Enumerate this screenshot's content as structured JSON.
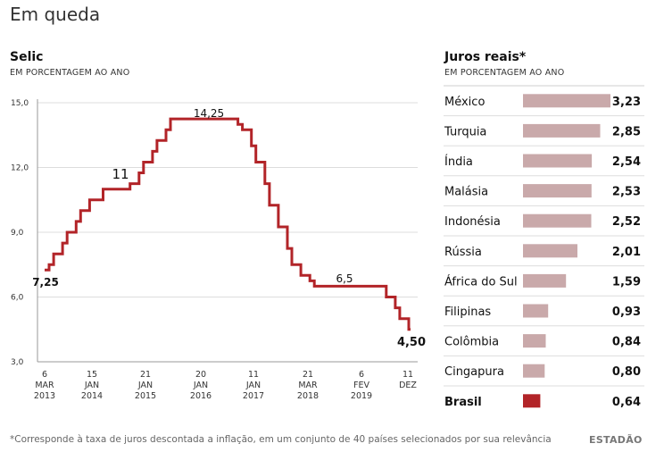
{
  "page_title": "Em queda",
  "footnote": "*Corresponde à taxa de juros descontada a inflação, em um conjunto de 40 países selecionados por sua relevância",
  "logo": "ESTADÃO",
  "colors": {
    "line": "#b22428",
    "bar": "#c9a9aa",
    "bar_highlight": "#b22428",
    "grid": "#dddddd"
  },
  "chart_data": [
    {
      "type": "line",
      "title": "Selic",
      "subtitle": "EM PORCENTAGEM AO ANO",
      "ylim": [
        3.0,
        15.0
      ],
      "yticks": [
        "15,0",
        "12,0",
        "9,0",
        "6,0",
        "3,0"
      ],
      "xticks": [
        [
          "6",
          "MAR",
          "2013"
        ],
        [
          "15",
          "JAN",
          "2014"
        ],
        [
          "21",
          "JAN",
          "2015"
        ],
        [
          "20",
          "JAN",
          "2016"
        ],
        [
          "11",
          "JAN",
          "2017"
        ],
        [
          "21",
          "MAR",
          "2018"
        ],
        [
          "6",
          "FEV",
          "2019"
        ],
        [
          "11",
          "DEZ",
          ""
        ]
      ],
      "annotations": [
        "7,25",
        "11",
        "14,25",
        "6,5",
        "4,50"
      ],
      "grid": "horizontal",
      "series": [
        {
          "x": [
            "2013-03",
            "2013-04",
            "2013-05",
            "2013-07",
            "2013-08",
            "2013-10",
            "2013-11",
            "2014-01",
            "2014-04",
            "2014-10",
            "2014-12",
            "2015-01",
            "2015-03",
            "2015-04",
            "2015-06",
            "2015-07",
            "2016-10",
            "2016-11",
            "2017-01",
            "2017-02",
            "2017-04",
            "2017-05",
            "2017-07",
            "2017-09",
            "2017-10",
            "2017-12",
            "2018-02",
            "2018-03",
            "2019-07",
            "2019-09",
            "2019-10",
            "2019-12"
          ],
          "y": [
            7.25,
            7.5,
            8.0,
            8.5,
            9.0,
            9.5,
            10.0,
            10.5,
            11.0,
            11.25,
            11.75,
            12.25,
            12.75,
            13.25,
            13.75,
            14.25,
            14.0,
            13.75,
            13.0,
            12.25,
            11.25,
            10.25,
            9.25,
            8.25,
            7.5,
            7.0,
            6.75,
            6.5,
            6.0,
            5.5,
            5.0,
            4.5
          ]
        }
      ]
    },
    {
      "type": "bar",
      "title": "Juros reais*",
      "subtitle": "EM PORCENTAGEM AO ANO",
      "categories": [
        "México",
        "Turquia",
        "Índia",
        "Malásia",
        "Indonésia",
        "Rússia",
        "África do Sul",
        "Filipinas",
        "Colômbia",
        "Cingapura",
        "Brasil"
      ],
      "values": [
        3.23,
        2.85,
        2.54,
        2.53,
        2.52,
        2.01,
        1.59,
        0.93,
        0.84,
        0.8,
        0.64
      ],
      "labels": [
        "3,23",
        "2,85",
        "2,54",
        "2,53",
        "2,52",
        "2,01",
        "1,59",
        "0,93",
        "0,84",
        "0,80",
        "0,64"
      ],
      "highlight": "Brasil"
    }
  ]
}
